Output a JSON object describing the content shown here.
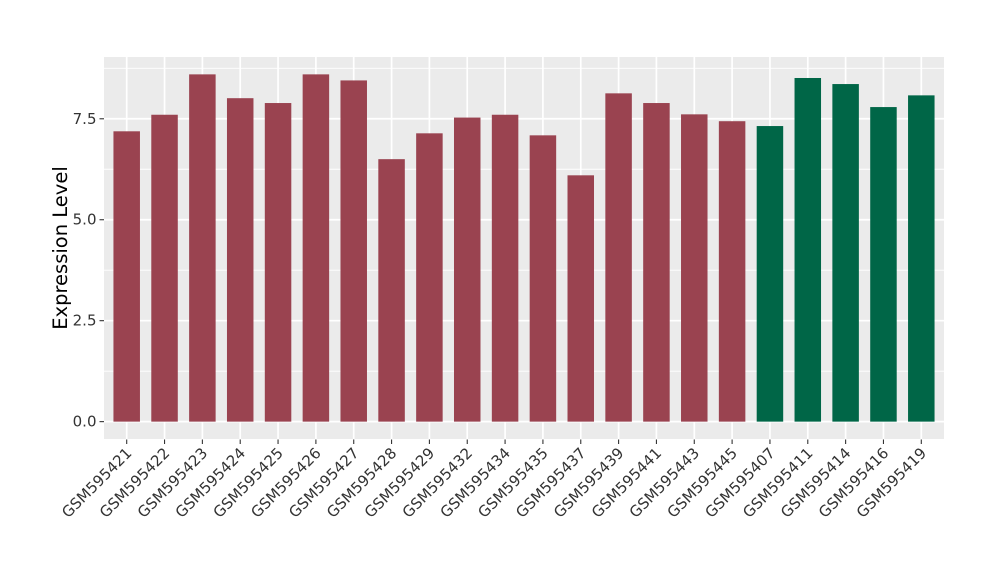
{
  "chart_data": {
    "type": "bar",
    "title": "",
    "xlabel": "",
    "ylabel": "Expression Level",
    "categories": [
      "GSM595421",
      "GSM595422",
      "GSM595423",
      "GSM595424",
      "GSM595425",
      "GSM595426",
      "GSM595427",
      "GSM595428",
      "GSM595429",
      "GSM595432",
      "GSM595434",
      "GSM595435",
      "GSM595437",
      "GSM595439",
      "GSM595441",
      "GSM595443",
      "GSM595445",
      "GSM595407",
      "GSM595411",
      "GSM595414",
      "GSM595416",
      "GSM595419"
    ],
    "values": [
      7.19,
      7.6,
      8.6,
      8.01,
      7.89,
      8.6,
      8.45,
      6.5,
      7.14,
      7.53,
      7.6,
      7.09,
      6.1,
      8.13,
      7.89,
      7.61,
      7.44,
      7.32,
      8.51,
      8.36,
      7.79,
      8.08
    ],
    "groups": [
      "maroon",
      "maroon",
      "maroon",
      "maroon",
      "maroon",
      "maroon",
      "maroon",
      "maroon",
      "maroon",
      "maroon",
      "maroon",
      "maroon",
      "maroon",
      "maroon",
      "maroon",
      "maroon",
      "maroon",
      "green",
      "green",
      "green",
      "green",
      "green"
    ],
    "group_colors": {
      "maroon": "#9A4350",
      "green": "#006647"
    },
    "y_tick_labels": [
      "0.0",
      "2.5",
      "5.0",
      "7.5"
    ],
    "y_tick_values": [
      0,
      2.5,
      5.0,
      7.5
    ],
    "y_minor_values": [
      1.25,
      3.75,
      6.25,
      8.75
    ],
    "ylim": [
      -0.43,
      9.03
    ],
    "grid": "on",
    "legend": "none",
    "panel_background": "#EBEBEB",
    "grid_color": "#FFFFFF",
    "axis_text_color": "#333333",
    "axis_title_color": "#000000"
  }
}
